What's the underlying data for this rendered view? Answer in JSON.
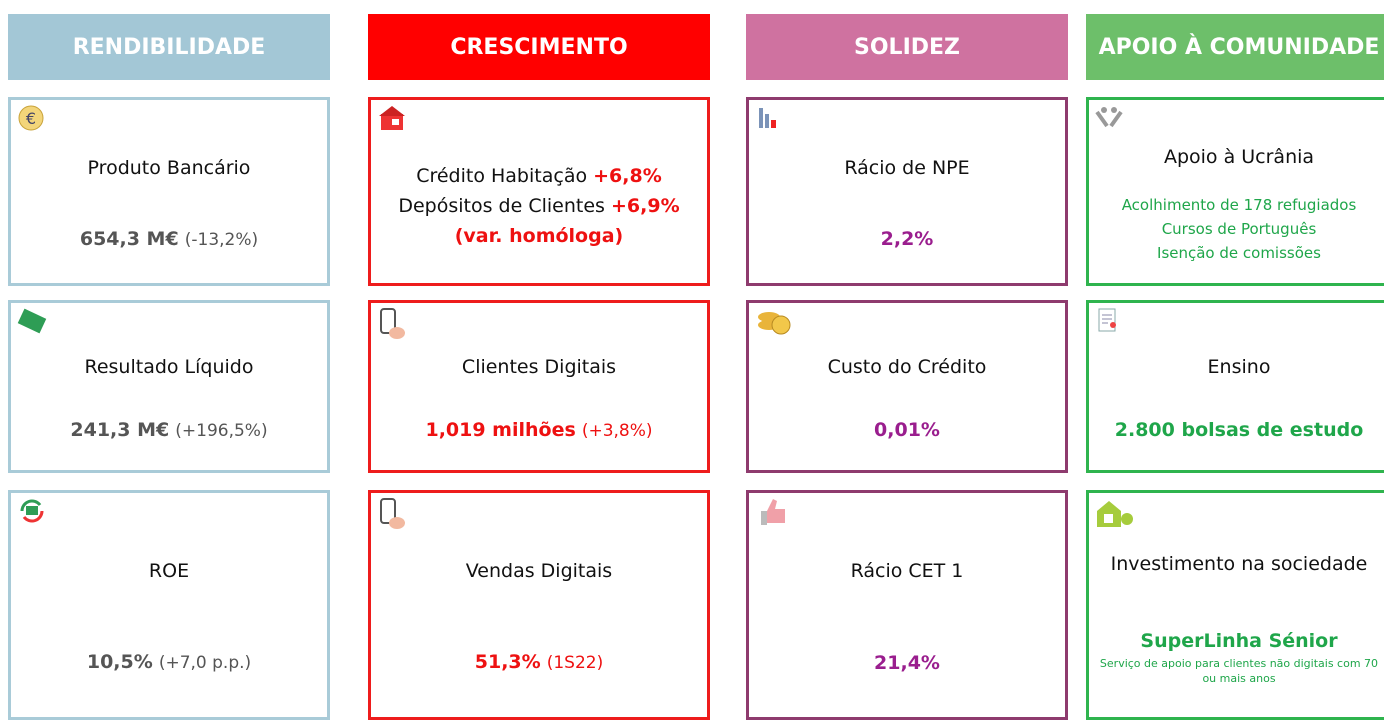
{
  "columns": [
    {
      "header": "RENDIBILIDADE",
      "cards": [
        {
          "title": "Produto Bancário",
          "value": "654,3 M€",
          "note": "(-13,2%)"
        },
        {
          "title": "Resultado Líquido",
          "value": "241,3 M€",
          "note": "(+196,5%)"
        },
        {
          "title": "ROE",
          "value": "10,5%",
          "note": "(+7,0 p.p.)"
        }
      ]
    },
    {
      "header": "CRESCIMENTO",
      "cards": [
        {
          "items": [
            {
              "label": "Crédito Habitação",
              "value": "+6,8%"
            },
            {
              "label": "Depósitos de Clientes",
              "value": "+6,9%"
            }
          ],
          "value": "(var. homóloga)"
        },
        {
          "title": "Clientes Digitais",
          "value": "1,019 milhões",
          "note": "(+3,8%)"
        },
        {
          "title": "Vendas Digitais",
          "value": "51,3%",
          "note": "(1S22)"
        }
      ]
    },
    {
      "header": "SOLIDEZ",
      "cards": [
        {
          "title": "Rácio de NPE",
          "value": "2,2%"
        },
        {
          "title": "Custo do Crédito",
          "value": "0,01%"
        },
        {
          "title": "Rácio CET 1",
          "value": "21,4%"
        }
      ]
    },
    {
      "header": "APOIO À COMUNIDADE",
      "cards": [
        {
          "title": "Apoio à Ucrânia",
          "details": [
            "Acolhimento de 178 refugiados",
            "Cursos de Português",
            "Isenção de comissões"
          ]
        },
        {
          "title": "Ensino",
          "value": "2.800 bolsas de estudo"
        },
        {
          "title": "Investimento na sociedade",
          "value": "SuperLinha Sénior",
          "fine": [
            "Serviço de apoio para clientes não digitais com 70 ou mais anos"
          ]
        }
      ]
    }
  ]
}
